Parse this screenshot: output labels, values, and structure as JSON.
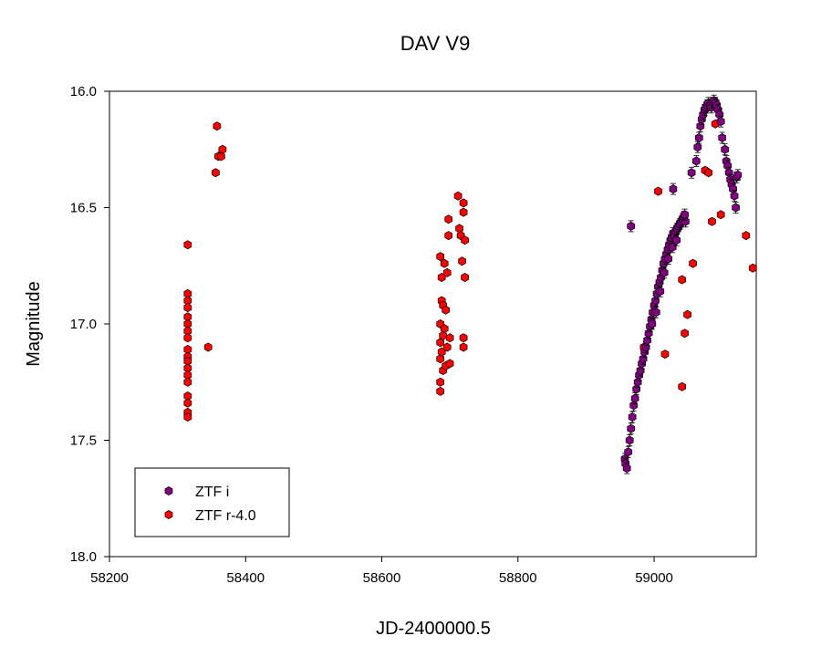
{
  "chart_data": {
    "type": "scatter",
    "title": "DAV V9",
    "xlabel": "JD-2400000.5",
    "ylabel": "Magnitude",
    "xlim": [
      58200,
      59150
    ],
    "ylim": [
      16.0,
      18.0
    ],
    "y_inverted": true,
    "xticks": [
      58200,
      58400,
      58600,
      58800,
      59000
    ],
    "xtick_labels": [
      "58200",
      "58400",
      "58600",
      "58800",
      "59000"
    ],
    "yticks": [
      16.0,
      16.5,
      17.0,
      17.5,
      18.0
    ],
    "ytick_labels": [
      "16.0",
      "16.5",
      "17.0",
      "17.5",
      "18.0"
    ],
    "grid": false,
    "legend_position": "bottom-left",
    "colors": {
      "ztf_i": "#800080",
      "ztf_r": "#ff0000"
    },
    "series": [
      {
        "name": "ZTF i",
        "marker": "hexagon",
        "points": [
          [
            58957,
            17.58
          ],
          [
            58958,
            17.6
          ],
          [
            58960,
            17.62
          ],
          [
            58962,
            17.55
          ],
          [
            58964,
            17.5
          ],
          [
            58966,
            17.45
          ],
          [
            58968,
            17.4
          ],
          [
            58970,
            17.35
          ],
          [
            58972,
            17.32
          ],
          [
            58974,
            17.28
          ],
          [
            58976,
            17.25
          ],
          [
            58978,
            17.22
          ],
          [
            58980,
            17.2
          ],
          [
            58982,
            17.17
          ],
          [
            58984,
            17.15
          ],
          [
            58986,
            17.12
          ],
          [
            58988,
            17.1
          ],
          [
            58990,
            17.07
          ],
          [
            58992,
            17.04
          ],
          [
            58994,
            17.01
          ],
          [
            58996,
            16.98
          ],
          [
            58998,
            16.95
          ],
          [
            59000,
            16.92
          ],
          [
            59002,
            16.9
          ],
          [
            59004,
            16.87
          ],
          [
            59006,
            16.84
          ],
          [
            59008,
            16.82
          ],
          [
            59010,
            16.8
          ],
          [
            59012,
            16.77
          ],
          [
            59014,
            16.74
          ],
          [
            59016,
            16.72
          ],
          [
            59018,
            16.7
          ],
          [
            59020,
            16.68
          ],
          [
            59022,
            16.66
          ],
          [
            59024,
            16.64
          ],
          [
            59026,
            16.63
          ],
          [
            59028,
            16.61
          ],
          [
            59030,
            16.62
          ],
          [
            59032,
            16.6
          ],
          [
            59034,
            16.59
          ],
          [
            59036,
            16.58
          ],
          [
            59038,
            16.57
          ],
          [
            59040,
            16.56
          ],
          [
            59042,
            16.55
          ],
          [
            59044,
            16.54
          ],
          [
            59046,
            16.56
          ],
          [
            58997,
            17.0
          ],
          [
            59003,
            16.95
          ],
          [
            59009,
            16.86
          ],
          [
            59015,
            16.78
          ],
          [
            59021,
            16.72
          ],
          [
            59027,
            16.67
          ],
          [
            59033,
            16.64
          ],
          [
            58966,
            16.58
          ],
          [
            59028,
            16.42
          ],
          [
            59045,
            16.53
          ],
          [
            59055,
            16.35
          ],
          [
            59062,
            16.3
          ],
          [
            59064,
            16.24
          ],
          [
            59066,
            16.2
          ],
          [
            59068,
            16.15
          ],
          [
            59070,
            16.12
          ],
          [
            59072,
            16.1
          ],
          [
            59074,
            16.08
          ],
          [
            59076,
            16.07
          ],
          [
            59078,
            16.06
          ],
          [
            59080,
            16.05
          ],
          [
            59082,
            16.06
          ],
          [
            59084,
            16.07
          ],
          [
            59086,
            16.05
          ],
          [
            59088,
            16.04
          ],
          [
            59090,
            16.05
          ],
          [
            59092,
            16.06
          ],
          [
            59094,
            16.08
          ],
          [
            59096,
            16.1
          ],
          [
            59098,
            16.13
          ],
          [
            59100,
            16.2
          ],
          [
            59104,
            16.25
          ],
          [
            59106,
            16.3
          ],
          [
            59108,
            16.32
          ],
          [
            59110,
            16.35
          ],
          [
            59112,
            16.38
          ],
          [
            59114,
            16.4
          ],
          [
            59116,
            16.42
          ],
          [
            59118,
            16.45
          ],
          [
            59120,
            16.5
          ],
          [
            59121,
            16.37
          ],
          [
            59123,
            16.36
          ]
        ]
      },
      {
        "name": "ZTF r-4.0",
        "marker": "hexagon",
        "points": [
          [
            58315,
            16.66
          ],
          [
            58315,
            16.87
          ],
          [
            58315,
            16.9
          ],
          [
            58315,
            16.93
          ],
          [
            58315,
            16.97
          ],
          [
            58315,
            17.0
          ],
          [
            58315,
            17.03
          ],
          [
            58315,
            17.06
          ],
          [
            58315,
            17.11
          ],
          [
            58315,
            17.14
          ],
          [
            58315,
            17.16
          ],
          [
            58315,
            17.19
          ],
          [
            58315,
            17.22
          ],
          [
            58315,
            17.25
          ],
          [
            58315,
            17.31
          ],
          [
            58315,
            17.34
          ],
          [
            58315,
            17.38
          ],
          [
            58315,
            17.4
          ],
          [
            58345,
            17.1
          ],
          [
            58356,
            16.35
          ],
          [
            58358,
            16.15
          ],
          [
            58360,
            16.28
          ],
          [
            58364,
            16.28
          ],
          [
            58366,
            16.25
          ],
          [
            58686,
            16.71
          ],
          [
            58686,
            17.0
          ],
          [
            58686,
            17.08
          ],
          [
            58686,
            17.15
          ],
          [
            58686,
            17.25
          ],
          [
            58686,
            17.29
          ],
          [
            58688,
            16.8
          ],
          [
            58688,
            16.9
          ],
          [
            58688,
            17.12
          ],
          [
            58690,
            16.92
          ],
          [
            58690,
            17.05
          ],
          [
            58690,
            17.2
          ],
          [
            58692,
            16.74
          ],
          [
            58692,
            17.02
          ],
          [
            58694,
            16.94
          ],
          [
            58694,
            17.18
          ],
          [
            58696,
            16.78
          ],
          [
            58696,
            17.1
          ],
          [
            58698,
            16.55
          ],
          [
            58698,
            16.62
          ],
          [
            58700,
            17.06
          ],
          [
            58700,
            17.17
          ],
          [
            58712,
            16.45
          ],
          [
            58714,
            16.59
          ],
          [
            58716,
            16.62
          ],
          [
            58718,
            16.73
          ],
          [
            58720,
            16.48
          ],
          [
            58720,
            16.52
          ],
          [
            58720,
            17.06
          ],
          [
            58720,
            17.1
          ],
          [
            58722,
            16.64
          ],
          [
            58722,
            16.8
          ],
          [
            58985,
            17.1
          ],
          [
            59006,
            16.43
          ],
          [
            59016,
            17.13
          ],
          [
            59041,
            16.81
          ],
          [
            59041,
            17.27
          ],
          [
            59045,
            17.04
          ],
          [
            59049,
            16.96
          ],
          [
            59057,
            16.74
          ],
          [
            59075,
            16.34
          ],
          [
            59080,
            16.35
          ],
          [
            59085,
            16.56
          ],
          [
            59098,
            16.53
          ],
          [
            59135,
            16.62
          ],
          [
            59145,
            16.76
          ],
          [
            59090,
            16.14
          ]
        ]
      }
    ]
  }
}
